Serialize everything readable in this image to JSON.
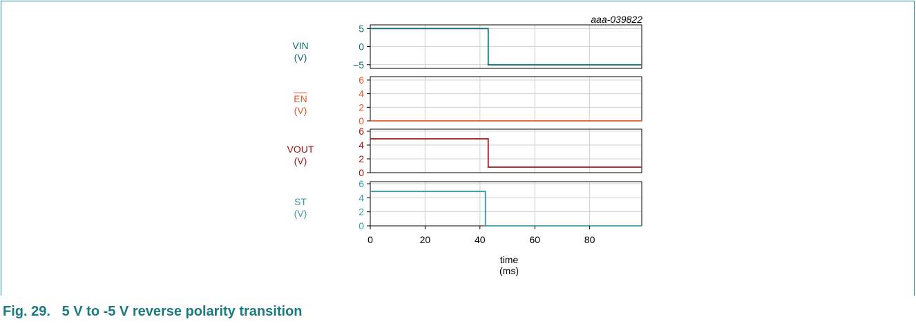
{
  "figure_id": "aaa-039822",
  "caption": "Fig. 29.   5 V to -5 V reverse polarity transition",
  "colors": {
    "vin": "#0e6f75",
    "en": "#e0582a",
    "vout": "#a01414",
    "st": "#3a9ca8",
    "caption": "#1a7a80",
    "frame": "#2a8a8e",
    "grid": "#d0d0d0"
  },
  "x_axis": {
    "label": "time",
    "unit": "(ms)",
    "ticks": [
      "0",
      "20",
      "40",
      "60",
      "80"
    ]
  },
  "chart_data": [
    {
      "type": "line",
      "series": [
        {
          "name": "VIN",
          "x": [
            0,
            43,
            43,
            99
          ],
          "y": [
            5,
            5,
            -5,
            -5
          ]
        }
      ],
      "ylabel": "VIN",
      "yunit": "(V)",
      "yticks": [
        5,
        0,
        -5
      ],
      "ytick_labels": [
        "5",
        "0",
        "−5"
      ],
      "xlim": [
        0,
        99
      ],
      "ylim": [
        -6,
        6
      ],
      "grid": true
    },
    {
      "type": "line",
      "series": [
        {
          "name": "EN",
          "x": [
            0,
            99
          ],
          "y": [
            0,
            0
          ]
        }
      ],
      "ylabel": "EN",
      "yunit": "(V)",
      "yticks": [
        6,
        4,
        2,
        0
      ],
      "ytick_labels": [
        "6",
        "4",
        "2",
        "0"
      ],
      "xlim": [
        0,
        99
      ],
      "ylim": [
        0,
        6.5
      ],
      "grid": true
    },
    {
      "type": "line",
      "series": [
        {
          "name": "VOUT",
          "x": [
            0,
            43,
            43,
            99
          ],
          "y": [
            4.9,
            4.9,
            0.8,
            0.8
          ]
        }
      ],
      "ylabel": "VOUT",
      "yunit": "(V)",
      "yticks": [
        6,
        4,
        2,
        0
      ],
      "ytick_labels": [
        "6",
        "4",
        "2",
        "0"
      ],
      "xlim": [
        0,
        99
      ],
      "ylim": [
        0,
        6.3
      ],
      "grid": true
    },
    {
      "type": "line",
      "series": [
        {
          "name": "ST",
          "x": [
            0,
            42,
            42,
            99
          ],
          "y": [
            4.9,
            4.9,
            0,
            0
          ]
        }
      ],
      "ylabel": "ST",
      "yunit": "(V)",
      "yticks": [
        6,
        4,
        2,
        0
      ],
      "ytick_labels": [
        "6",
        "4",
        "2",
        "0"
      ],
      "xlim": [
        0,
        99
      ],
      "ylim": [
        0,
        6.3
      ],
      "grid": true
    }
  ]
}
